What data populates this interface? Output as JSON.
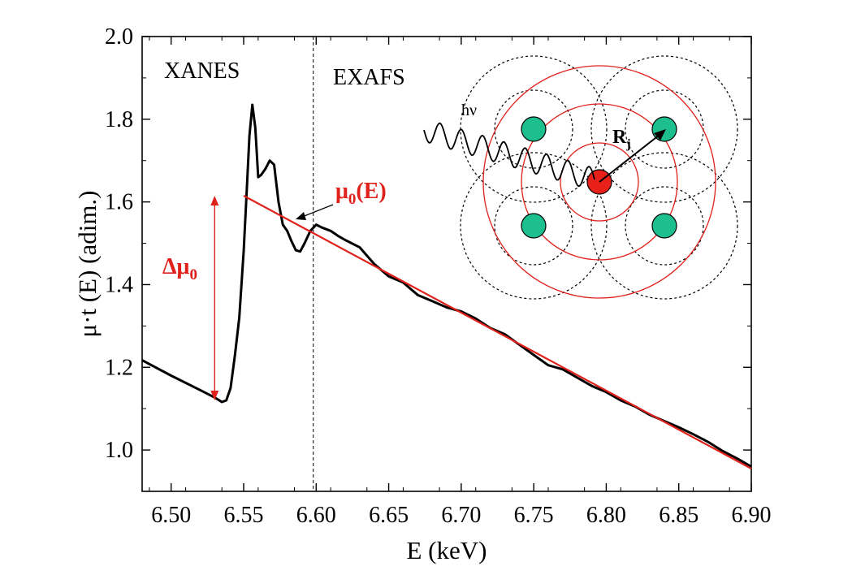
{
  "chart_data": {
    "type": "line",
    "xlabel": "E (keV)",
    "ylabel": "μ·t (E) (adim.)",
    "xlim": [
      6.48,
      6.9
    ],
    "ylim": [
      0.9,
      2.0
    ],
    "x_ticks": [
      "6.50",
      "6.55",
      "6.60",
      "6.65",
      "6.70",
      "6.75",
      "6.80",
      "6.85",
      "6.90"
    ],
    "y_ticks": [
      "1.0",
      "1.2",
      "1.4",
      "1.6",
      "1.8",
      "2.0"
    ],
    "grid": false,
    "series": [
      {
        "name": "",
        "color": "#000000",
        "points": [
          [
            6.48,
            1.217
          ],
          [
            6.5,
            1.18
          ],
          [
            6.52,
            1.145
          ],
          [
            6.53,
            1.127
          ],
          [
            6.535,
            1.116
          ],
          [
            6.538,
            1.12
          ],
          [
            6.541,
            1.15
          ],
          [
            6.544,
            1.23
          ],
          [
            6.547,
            1.32
          ],
          [
            6.55,
            1.48
          ],
          [
            6.552,
            1.62
          ],
          [
            6.554,
            1.76
          ],
          [
            6.556,
            1.835
          ],
          [
            6.558,
            1.78
          ],
          [
            6.56,
            1.66
          ],
          [
            6.562,
            1.665
          ],
          [
            6.565,
            1.68
          ],
          [
            6.568,
            1.7
          ],
          [
            6.571,
            1.69
          ],
          [
            6.574,
            1.6
          ],
          [
            6.577,
            1.545
          ],
          [
            6.58,
            1.53
          ],
          [
            6.583,
            1.505
          ],
          [
            6.586,
            1.483
          ],
          [
            6.589,
            1.48
          ],
          [
            6.592,
            1.5
          ],
          [
            6.596,
            1.53
          ],
          [
            6.6,
            1.545
          ],
          [
            6.604,
            1.538
          ],
          [
            6.61,
            1.53
          ],
          [
            6.615,
            1.518
          ],
          [
            6.62,
            1.508
          ],
          [
            6.63,
            1.49
          ],
          [
            6.64,
            1.45
          ],
          [
            6.65,
            1.42
          ],
          [
            6.66,
            1.405
          ],
          [
            6.67,
            1.375
          ],
          [
            6.68,
            1.36
          ],
          [
            6.69,
            1.345
          ],
          [
            6.7,
            1.335
          ],
          [
            6.71,
            1.318
          ],
          [
            6.72,
            1.295
          ],
          [
            6.73,
            1.28
          ],
          [
            6.74,
            1.255
          ],
          [
            6.75,
            1.23
          ],
          [
            6.76,
            1.205
          ],
          [
            6.77,
            1.195
          ],
          [
            6.78,
            1.175
          ],
          [
            6.79,
            1.155
          ],
          [
            6.8,
            1.14
          ],
          [
            6.81,
            1.12
          ],
          [
            6.82,
            1.105
          ],
          [
            6.83,
            1.085
          ],
          [
            6.84,
            1.07
          ],
          [
            6.85,
            1.055
          ],
          [
            6.86,
            1.038
          ],
          [
            6.87,
            1.02
          ],
          [
            6.88,
            0.998
          ],
          [
            6.89,
            0.98
          ],
          [
            6.9,
            0.96
          ]
        ]
      },
      {
        "name": "μ0(E)",
        "color": "#e0201b",
        "points": [
          [
            6.55,
            1.615
          ],
          [
            6.9,
            0.955
          ]
        ]
      }
    ],
    "annotations": {
      "xanes_label": "XANES",
      "exafs_label": "EXAFS",
      "edge_divider_x": 6.598,
      "mu0_label": "μ0(E)",
      "delta_mu_label": "Δμ0",
      "delta_mu_x": 6.53,
      "delta_mu_range": [
        1.12,
        1.615
      ],
      "inset_photon_label": "hν",
      "inset_radius_label": "Rj"
    }
  },
  "colors": {
    "curve": "#000000",
    "fit": "#e0201b",
    "neighbor_atom": "#1dbf8e",
    "absorber_atom": "#e8201a"
  }
}
